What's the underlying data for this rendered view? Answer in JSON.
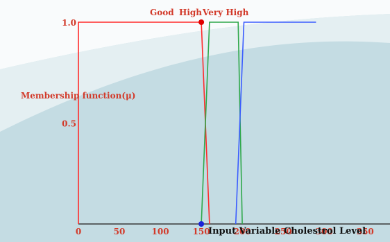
{
  "chart_data": {
    "type": "line",
    "title": "",
    "xlabel": "Input Variable Cholestrol Level",
    "ylabel": "Membership function(μ)",
    "xlim": [
      0,
      350
    ],
    "ylim": [
      0,
      1.0
    ],
    "x_ticks": [
      "0",
      "50",
      "100",
      "150",
      "200",
      "250",
      "300",
      "350"
    ],
    "y_ticks": [
      "0.5",
      "1.0"
    ],
    "series": [
      {
        "name": "Good",
        "color": "#ff2a2a",
        "points": [
          [
            0,
            0
          ],
          [
            0,
            1.0
          ],
          [
            150,
            1.0
          ],
          [
            160,
            0
          ]
        ]
      },
      {
        "name": "High",
        "color": "#2ea84a",
        "points": [
          [
            150,
            0
          ],
          [
            160,
            1.0
          ],
          [
            195,
            1.0
          ],
          [
            200,
            0
          ]
        ]
      },
      {
        "name": "Very High",
        "color": "#3a5cff",
        "points": [
          [
            192,
            0
          ],
          [
            202,
            1.0
          ],
          [
            290,
            1.0
          ]
        ]
      }
    ],
    "markers": [
      {
        "x": 150,
        "y": 1.0,
        "color": "#e00000"
      },
      {
        "x": 150,
        "y": 0,
        "color": "#1a22d8"
      }
    ],
    "grid": false,
    "legend": "top, labels above curves",
    "background": {
      "base": "#c4dce3",
      "light": "#e4eff2",
      "white": "#f9fbfc"
    }
  }
}
